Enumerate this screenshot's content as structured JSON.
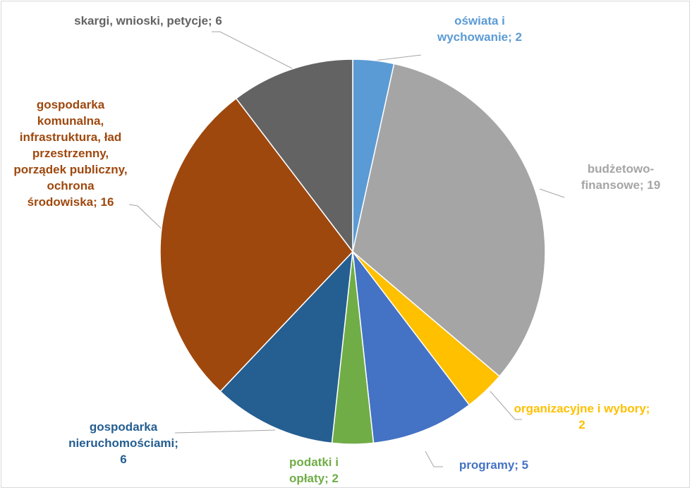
{
  "chart_data": {
    "type": "pie",
    "values": [
      2,
      19,
      2,
      5,
      2,
      6,
      16,
      6
    ],
    "value_labels": [
      "oświata i wychowanie; 2",
      "budżetowo-finansowe; 19",
      "organizacyjne i wybory; 2",
      "programy; 5",
      "podatki i opłaty; 2",
      "gospodarka nieruchomościami; 6",
      "gospodarka komunalna, infrastruktura, ład przestrzenny, porządek publiczny, ochrona środowiska; 16",
      "skargi, wnioski, petycje; 6"
    ],
    "colors": [
      "#5b9bd5",
      "#a5a5a5",
      "#ffc000",
      "#4472c4",
      "#70ad47",
      "#255e91",
      "#9e480e",
      "#636363"
    ]
  }
}
